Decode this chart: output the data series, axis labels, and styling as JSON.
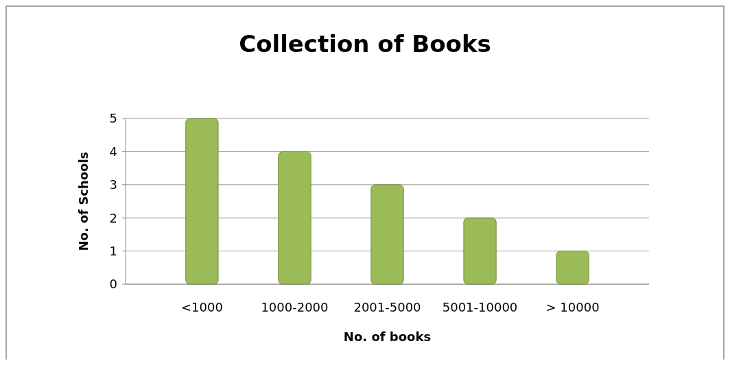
{
  "chart_data": {
    "type": "bar",
    "title": "Collection of Books",
    "xlabel": "No. of books",
    "ylabel": "No. of Schools",
    "categories": [
      "<1000",
      "1000-2000",
      "2001-5000",
      "5001-10000",
      "> 10000"
    ],
    "values": [
      5,
      4,
      3,
      2,
      1
    ],
    "color": "#9bbb59",
    "ylim": [
      0,
      5
    ],
    "yticks": [
      0,
      1,
      2,
      3,
      4,
      5
    ],
    "grid": "y"
  }
}
